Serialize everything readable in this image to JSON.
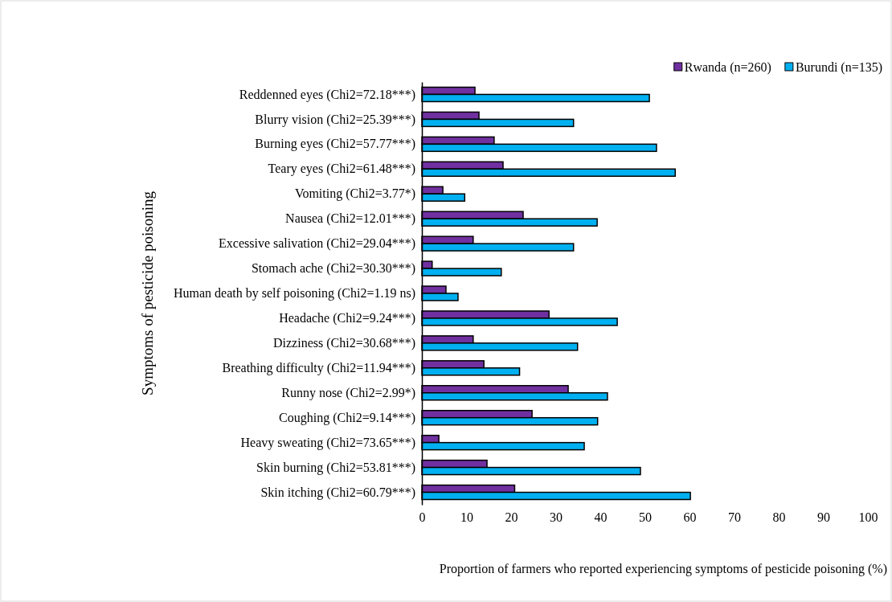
{
  "chart_data": {
    "type": "bar",
    "orientation": "horizontal",
    "xlabel": "Proportion of farmers who reported experiencing symptoms of pesticide poisoning (%)",
    "ylabel": "Symptoms of pesticide poisoning",
    "categories": [
      "Reddenned eyes (Chi2=72.18***)",
      "Blurry vision (Chi2=25.39***)",
      "Burning eyes (Chi2=57.77***)",
      "Teary eyes (Chi2=61.48***)",
      "Vomiting (Chi2=3.77*)",
      "Nausea (Chi2=12.01***)",
      "Excessive salivation (Chi2=29.04***)",
      "Stomach ache (Chi2=30.30***)",
      "Human death by self poisoning (Chi2=1.19 ns)",
      "Headache (Chi2=9.24***)",
      "Dizziness (Chi2=30.68***)",
      "Breathing difficulty (Chi2=11.94***)",
      "Runny nose (Chi2=2.99*)",
      "Coughing (Chi2=9.14***)",
      "Heavy sweating (Chi2=73.65***)",
      "Skin burning (Chi2=53.81***)",
      "Skin itching (Chi2=60.79***)"
    ],
    "series": [
      {
        "name": "Rwanda (n=260)",
        "color": "#7030a0",
        "values": [
          11.9,
          12.8,
          16.2,
          18.2,
          4.7,
          22.7,
          11.5,
          2.3,
          5.4,
          28.5,
          11.5,
          13.9,
          32.8,
          24.7,
          3.8,
          14.6,
          20.8
        ]
      },
      {
        "name": "Burundi (n=135)",
        "color": "#00b0f0",
        "values": [
          51,
          34,
          52.6,
          56.8,
          9.6,
          39.3,
          34,
          17.8,
          8.1,
          43.8,
          34.9,
          21.9,
          41.6,
          39.4,
          36.4,
          49,
          60.2
        ]
      }
    ],
    "xlim": [
      0,
      100
    ],
    "xticks": [
      0,
      10,
      20,
      30,
      40,
      50,
      60,
      70,
      80,
      90,
      100
    ],
    "grid": false,
    "legend": "top right"
  }
}
